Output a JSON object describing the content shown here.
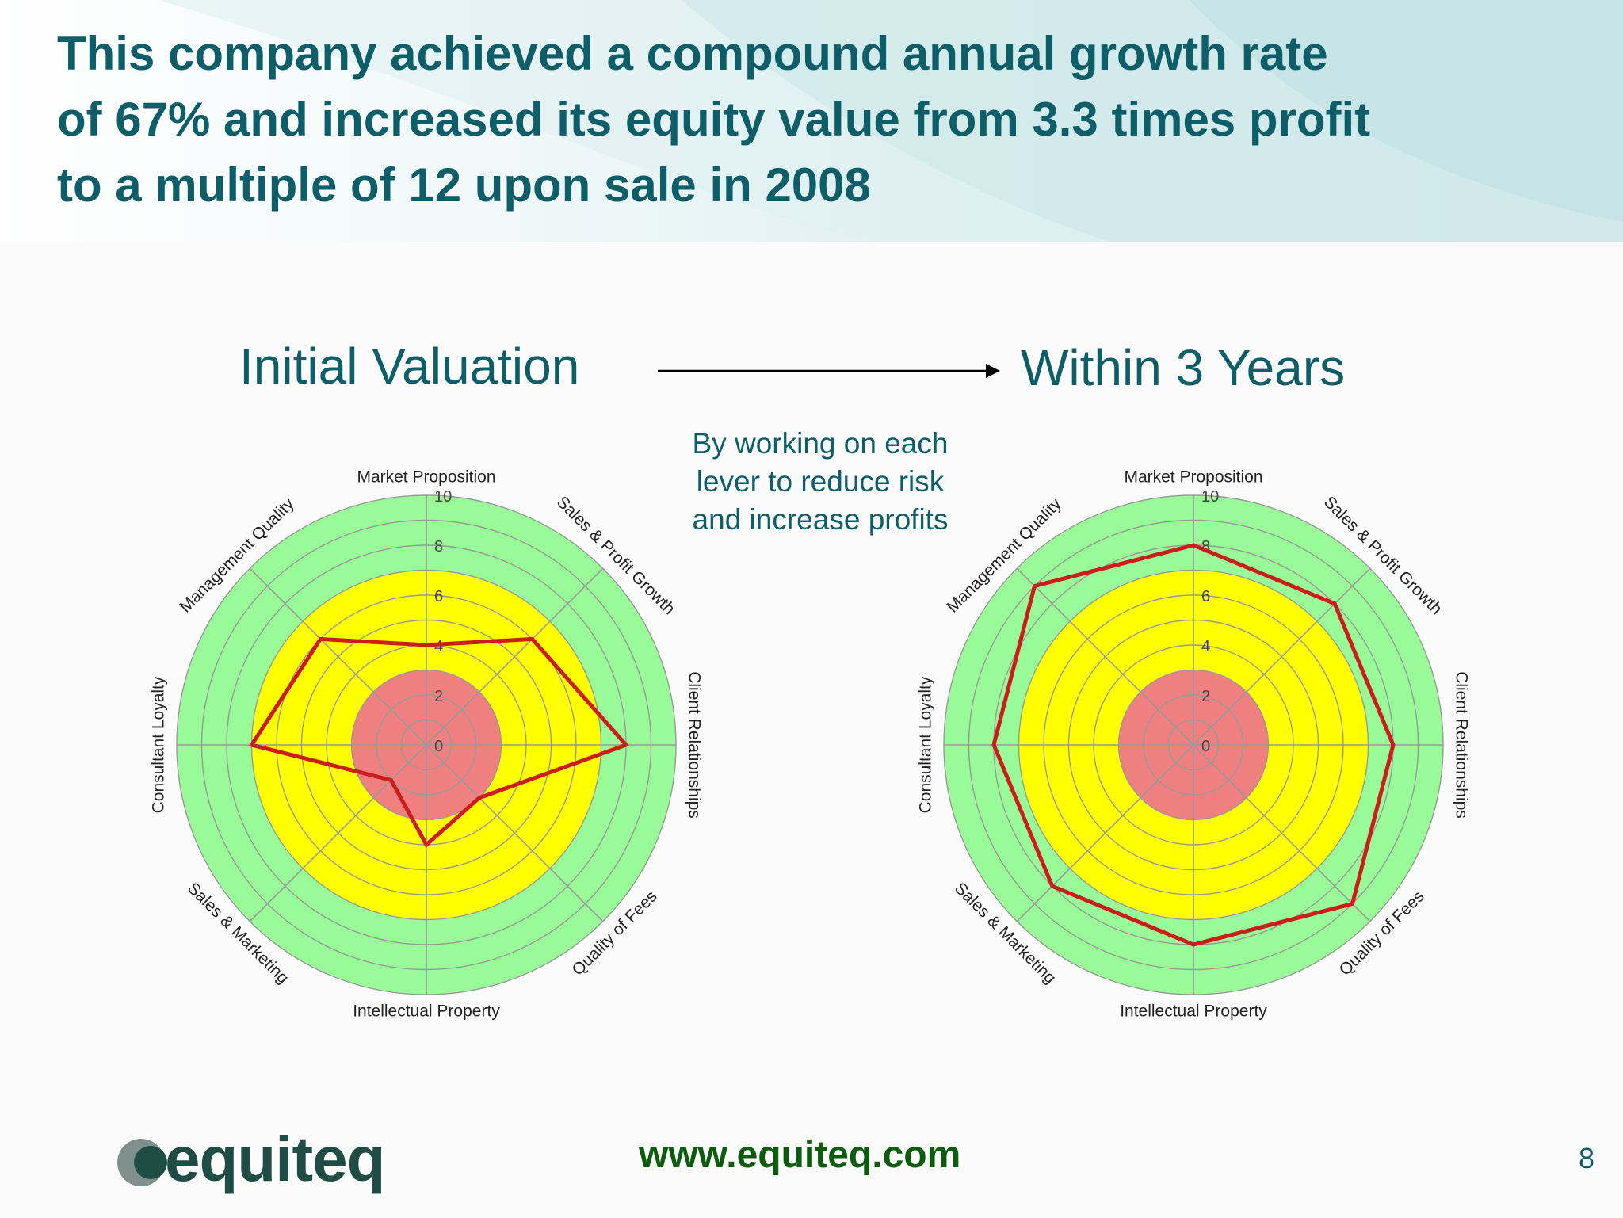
{
  "title": "This company achieved a compound annual growth rate\nof 67% and increased its equity value from 3.3 times profit\nto a multiple of 12 upon sale in 2008",
  "heading_left": "Initial Valuation",
  "heading_right": "Within 3 Years",
  "note": "By working on each\nlever to reduce risk\nand increase profits",
  "footer": {
    "logo_text": "equiteq",
    "url": "www.equiteq.com",
    "page_number": "8"
  },
  "colors": {
    "title": "#0d5e69",
    "zone_red": "#f08080",
    "zone_yellow": "#ffff00",
    "zone_green": "#98fb98",
    "series_line": "#cc1c1c",
    "grid": "#999999",
    "url": "#0d5b0d"
  },
  "chart_data": [
    {
      "type": "radar",
      "title": "Initial Valuation",
      "categories": [
        "Market Proposition",
        "Sales & Profit Growth",
        "Client Relationships",
        "Quality of Fees",
        "Intellectual Property",
        "Sales & Marketing",
        "Consultant Loyalty",
        "Management Quality"
      ],
      "series": [
        {
          "values": [
            4,
            6,
            8,
            3,
            4,
            2,
            7,
            6
          ]
        }
      ],
      "scale": [
        0,
        10
      ],
      "ticks": [
        "0",
        "2",
        "4",
        "6",
        "8",
        "10"
      ],
      "zones": [
        {
          "color": "red",
          "range": [
            0,
            3
          ]
        },
        {
          "color": "yellow",
          "range": [
            3,
            7
          ]
        },
        {
          "color": "green",
          "range": [
            7,
            10
          ]
        }
      ]
    },
    {
      "type": "radar",
      "title": "Within 3 Years",
      "categories": [
        "Market Proposition",
        "Sales & Profit Growth",
        "Client Relationships",
        "Quality of Fees",
        "Intellectual Property",
        "Sales & Marketing",
        "Consultant Loyalty",
        "Management Quality"
      ],
      "series": [
        {
          "values": [
            8,
            8,
            8,
            9,
            8,
            8,
            8,
            9
          ]
        }
      ],
      "scale": [
        0,
        10
      ],
      "ticks": [
        "0",
        "2",
        "4",
        "6",
        "8",
        "10"
      ],
      "zones": [
        {
          "color": "red",
          "range": [
            0,
            3
          ]
        },
        {
          "color": "yellow",
          "range": [
            3,
            7
          ]
        },
        {
          "color": "green",
          "range": [
            7,
            10
          ]
        }
      ]
    }
  ]
}
